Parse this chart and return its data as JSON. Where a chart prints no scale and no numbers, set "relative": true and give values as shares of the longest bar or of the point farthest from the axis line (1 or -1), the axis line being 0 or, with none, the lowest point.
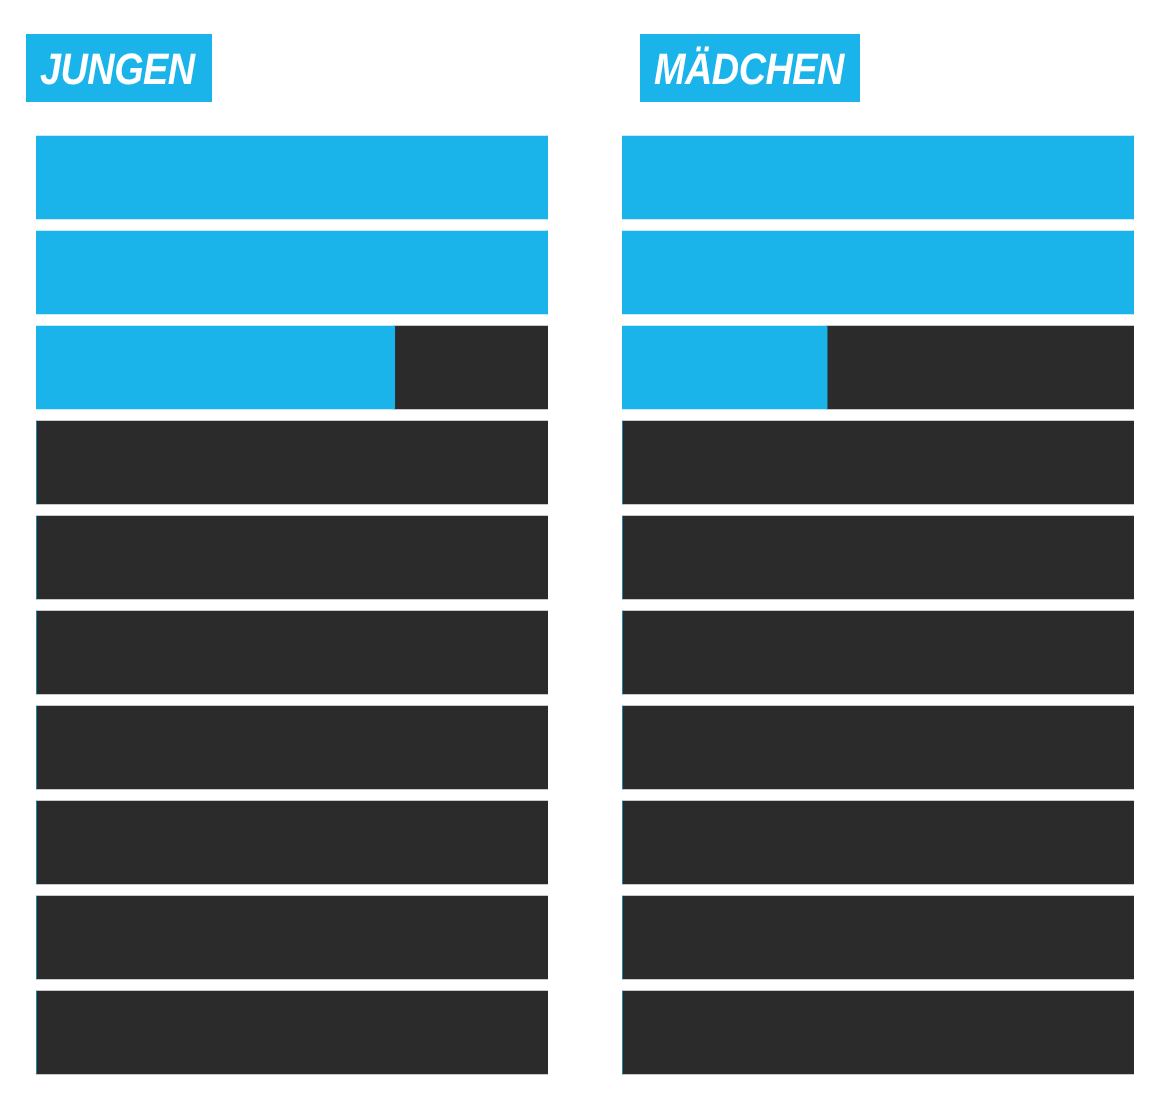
{
  "chart_data": [
    {
      "type": "bar",
      "title": "JUNGEN",
      "orientation": "horizontal",
      "stacked": true,
      "relative": true,
      "categories": [
        null,
        null,
        null,
        null,
        null,
        null,
        null,
        null,
        null,
        null
      ],
      "series": [
        {
          "color": "#1ab4ea",
          "values": [
            1,
            1,
            0.7,
            0,
            0,
            0,
            0,
            0,
            0,
            0
          ]
        },
        {
          "color": "#2b2b2b",
          "values": [
            0,
            0,
            0.3,
            1,
            1,
            1,
            1,
            1,
            1,
            1
          ]
        }
      ]
    },
    {
      "type": "bar",
      "title": "MÄDCHEN",
      "orientation": "horizontal",
      "stacked": true,
      "relative": true,
      "categories": [
        null,
        null,
        null,
        null,
        null,
        null,
        null,
        null,
        null,
        null
      ],
      "series": [
        {
          "color": "#1ab4ea",
          "values": [
            1,
            1,
            0.4,
            0,
            0,
            0,
            0,
            0,
            0,
            0
          ]
        },
        {
          "color": "#2b2b2b",
          "values": [
            0,
            0,
            0.6,
            1,
            1,
            1,
            1,
            1,
            1,
            1
          ]
        }
      ]
    }
  ]
}
